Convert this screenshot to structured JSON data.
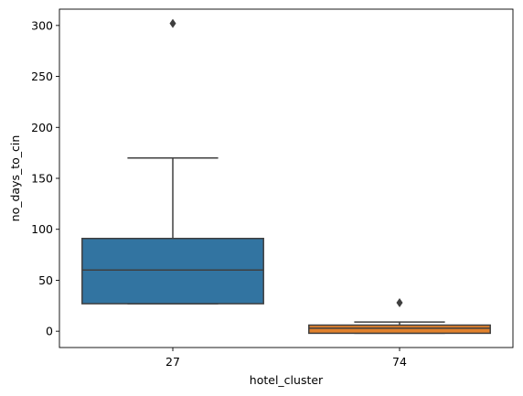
{
  "chart_data": {
    "type": "box",
    "xlabel": "hotel_cluster",
    "ylabel": "no_days_to_cin",
    "ylim": [
      -16,
      316
    ],
    "yticks": [
      0,
      50,
      100,
      150,
      200,
      250,
      300
    ],
    "grid": false,
    "boxes": [
      {
        "category": "27",
        "color": "#3274a1",
        "q1": 27,
        "median": 60,
        "q3": 91,
        "whisker_low": 27,
        "whisker_high": 170,
        "outliers": [
          302
        ]
      },
      {
        "category": "74",
        "color": "#e1812c",
        "q1": -2,
        "median": 3,
        "q3": 6,
        "whisker_low": -2,
        "whisker_high": 9,
        "outliers": [
          28
        ]
      }
    ]
  }
}
